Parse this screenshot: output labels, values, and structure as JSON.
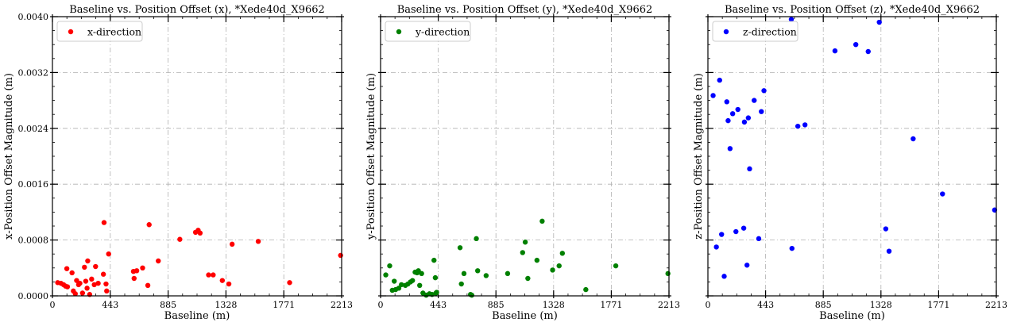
{
  "chart_data": [
    {
      "type": "scatter",
      "title": "Baseline vs. Position Offset (x), *Xede40d_X9662",
      "xlabel": "Baseline (m)",
      "ylabel": "x-Position Offset Magnitude (m)",
      "xlim": [
        0,
        2213
      ],
      "ylim": [
        0,
        0.004
      ],
      "xticks": [
        "0",
        "443",
        "885",
        "1328",
        "1771",
        "2213"
      ],
      "yticks": [
        "0.0000",
        "0.0008",
        "0.0016",
        "0.0024",
        "0.0032",
        "0.0040"
      ],
      "show_yticklabels": true,
      "grid": true,
      "legend_position": "top-left",
      "series": [
        {
          "name": "x-direction",
          "color": "#ff0000",
          "points": [
            [
              40,
              0.00019
            ],
            [
              65,
              0.00018
            ],
            [
              85,
              0.00016
            ],
            [
              100,
              0.00014
            ],
            [
              115,
              0.00013
            ],
            [
              110,
              0.00039
            ],
            [
              150,
              0.00033
            ],
            [
              160,
              7e-05
            ],
            [
              175,
              3e-05
            ],
            [
              185,
              0.00022
            ],
            [
              200,
              0.00016
            ],
            [
              210,
              0.00018
            ],
            [
              230,
              4e-05
            ],
            [
              245,
              0.00041
            ],
            [
              255,
              0.00021
            ],
            [
              265,
              0.00011
            ],
            [
              270,
              0.0005
            ],
            [
              285,
              2e-05
            ],
            [
              300,
              0.00024
            ],
            [
              320,
              0.00016
            ],
            [
              330,
              0.00042
            ],
            [
              350,
              0.00018
            ],
            [
              390,
              0.00031
            ],
            [
              395,
              0.00105
            ],
            [
              410,
              0.00017
            ],
            [
              415,
              7e-05
            ],
            [
              430,
              0.0006
            ],
            [
              620,
              0.00035
            ],
            [
              625,
              0.00025
            ],
            [
              645,
              0.00036
            ],
            [
              690,
              0.0004
            ],
            [
              730,
              0.00015
            ],
            [
              740,
              0.00102
            ],
            [
              810,
              0.0005
            ],
            [
              975,
              0.00081
            ],
            [
              1095,
              0.00091
            ],
            [
              1115,
              0.00094
            ],
            [
              1130,
              0.0009
            ],
            [
              1195,
              0.0003
            ],
            [
              1230,
              0.0003
            ],
            [
              1300,
              0.00022
            ],
            [
              1350,
              0.00017
            ],
            [
              1375,
              0.00074
            ],
            [
              1575,
              0.00078
            ],
            [
              1815,
              0.00019
            ],
            [
              2205,
              0.00058
            ]
          ]
        }
      ]
    },
    {
      "type": "scatter",
      "title": "Baseline vs. Position Offset (y), *Xede40d_X9662",
      "xlabel": "Baseline (m)",
      "ylabel": "y-Position Offset Magnitude (m)",
      "xlim": [
        0,
        2213
      ],
      "ylim": [
        0,
        0.004
      ],
      "xticks": [
        "0",
        "443",
        "885",
        "1328",
        "1771",
        "2213"
      ],
      "yticks": [
        "0.0000",
        "0.0008",
        "0.0016",
        "0.0024",
        "0.0032",
        "0.0040"
      ],
      "show_yticklabels": false,
      "grid": true,
      "legend_position": "top-left",
      "series": [
        {
          "name": "y-direction",
          "color": "#008000",
          "points": [
            [
              40,
              0.0003
            ],
            [
              70,
              0.00043
            ],
            [
              90,
              8e-05
            ],
            [
              105,
              0.00021
            ],
            [
              115,
              9e-05
            ],
            [
              140,
              0.00011
            ],
            [
              160,
              0.00016
            ],
            [
              190,
              0.00015
            ],
            [
              210,
              0.00017
            ],
            [
              230,
              0.0002
            ],
            [
              245,
              0.00022
            ],
            [
              265,
              0.00034
            ],
            [
              280,
              0.00033
            ],
            [
              290,
              0.00036
            ],
            [
              300,
              0.00015
            ],
            [
              315,
              0.00032
            ],
            [
              325,
              4e-05
            ],
            [
              350,
              1e-05
            ],
            [
              375,
              3e-05
            ],
            [
              395,
              2e-05
            ],
            [
              410,
              0.00051
            ],
            [
              420,
              0.00026
            ],
            [
              425,
              4e-05
            ],
            [
              430,
              5e-05
            ],
            [
              610,
              0.00069
            ],
            [
              620,
              0.00017
            ],
            [
              640,
              0.00032
            ],
            [
              690,
              2e-05
            ],
            [
              700,
              1e-05
            ],
            [
              735,
              0.00082
            ],
            [
              745,
              0.00036
            ],
            [
              810,
              0.00029
            ],
            [
              975,
              0.00032
            ],
            [
              1090,
              0.00062
            ],
            [
              1110,
              0.00077
            ],
            [
              1130,
              0.00025
            ],
            [
              1200,
              0.00051
            ],
            [
              1240,
              0.00107
            ],
            [
              1320,
              0.00037
            ],
            [
              1370,
              0.00043
            ],
            [
              1395,
              0.00061
            ],
            [
              1575,
              9e-05
            ],
            [
              1805,
              0.00043
            ],
            [
              2205,
              0.00032
            ]
          ]
        }
      ]
    },
    {
      "type": "scatter",
      "title": "Baseline vs. Position Offset (z), *Xede40d_X9662",
      "xlabel": "Baseline (m)",
      "ylabel": "z-Position Offset Magnitude (m)",
      "xlim": [
        0,
        2213
      ],
      "ylim": [
        0,
        0.004
      ],
      "xticks": [
        "0",
        "443",
        "885",
        "1328",
        "1771",
        "2213"
      ],
      "yticks": [
        "0.0000",
        "0.0008",
        "0.0016",
        "0.0024",
        "0.0032",
        "0.0040"
      ],
      "show_yticklabels": false,
      "grid": true,
      "legend_position": "top-left",
      "series": [
        {
          "name": "z-direction",
          "color": "#0000ff",
          "points": [
            [
              40,
              0.00287
            ],
            [
              65,
              0.0007
            ],
            [
              90,
              0.00309
            ],
            [
              105,
              0.00088
            ],
            [
              125,
              0.00028
            ],
            [
              145,
              0.00278
            ],
            [
              155,
              0.00251
            ],
            [
              170,
              0.00211
            ],
            [
              190,
              0.00261
            ],
            [
              215,
              0.00092
            ],
            [
              230,
              0.00267
            ],
            [
              275,
              0.00097
            ],
            [
              280,
              0.00249
            ],
            [
              300,
              0.00044
            ],
            [
              310,
              0.00255
            ],
            [
              320,
              0.00182
            ],
            [
              355,
              0.0028
            ],
            [
              390,
              0.00082
            ],
            [
              410,
              0.00264
            ],
            [
              430,
              0.00294
            ],
            [
              640,
              0.00396
            ],
            [
              645,
              0.00068
            ],
            [
              690,
              0.00243
            ],
            [
              745,
              0.00245
            ],
            [
              975,
              0.00351
            ],
            [
              1135,
              0.0036
            ],
            [
              1230,
              0.0035
            ],
            [
              1315,
              0.00392
            ],
            [
              1365,
              0.00096
            ],
            [
              1390,
              0.00064
            ],
            [
              1575,
              0.00225
            ],
            [
              1800,
              0.00146
            ],
            [
              2200,
              0.00123
            ]
          ]
        }
      ]
    }
  ]
}
